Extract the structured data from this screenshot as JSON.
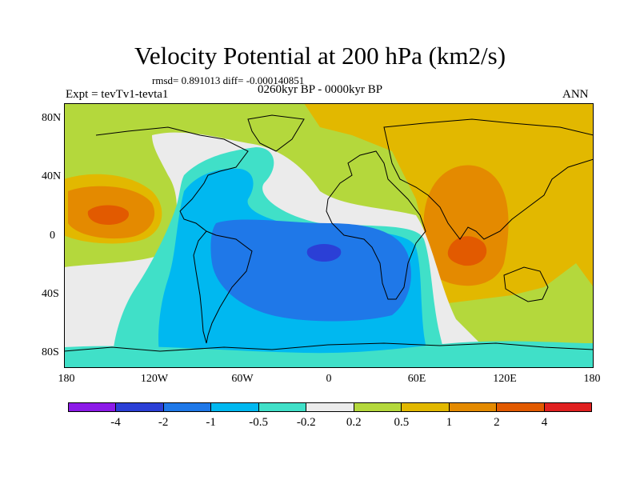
{
  "title": "Velocity Potential at 200 hPa (km2/s)",
  "stats": "rmsd= 0.891013 diff= -0.000140851",
  "expt": "Expt = tevTv1-tevta1",
  "period": "0260kyr BP - 0000kyr BP",
  "season": "ANN",
  "lat_ticks": [
    "80N",
    "40N",
    "0",
    "40S",
    "80S"
  ],
  "lon_ticks": [
    "180",
    "120W",
    "60W",
    "0",
    "60E",
    "120E",
    "180"
  ],
  "colorbar": {
    "colors": [
      "#8c1ae8",
      "#2b3fd6",
      "#1f78e8",
      "#00b8f0",
      "#40e0c8",
      "#ebebeb",
      "#b4d83c",
      "#e2b800",
      "#e48a00",
      "#e25a00",
      "#e02020"
    ],
    "labels": [
      "-4",
      "-2",
      "-1",
      "-0.5",
      "-0.2",
      "0.2",
      "0.5",
      "1",
      "2",
      "4"
    ]
  }
}
